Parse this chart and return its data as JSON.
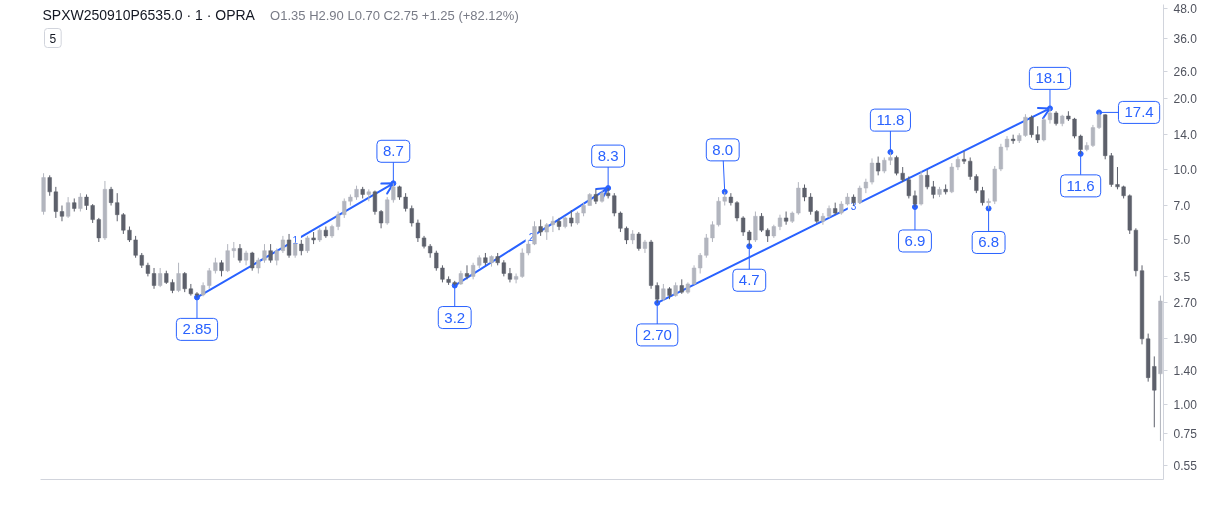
{
  "chart_data": {
    "type": "candlestick",
    "title": "SPXW250910P6535.0 · 1 · OPRA",
    "subtitle": "O1.35 H2.90 L0.70 C2.75 +1.25 (+82.12%)",
    "log": "y",
    "ylim": [
      0.48,
      50
    ],
    "yticks": [
      0.55,
      0.75,
      {
        "value": 1,
        "label": "1.00"
      },
      {
        "value": 1.4,
        "label": "1.40"
      },
      {
        "value": 1.9,
        "label": "1.90"
      },
      {
        "value": 2.7,
        "label": "2.70"
      },
      3.5,
      {
        "value": 5,
        "label": "5.0"
      },
      {
        "value": 7,
        "label": "7.0"
      },
      {
        "value": 10,
        "label": "10.0"
      },
      {
        "value": 14,
        "label": "14.0"
      },
      {
        "value": 20,
        "label": "20.0"
      },
      {
        "value": 26,
        "label": "26.0"
      },
      {
        "value": 36,
        "label": "36.0"
      },
      {
        "value": 48,
        "label": "48.0"
      }
    ],
    "categories": [
      null,
      null,
      null,
      null,
      null,
      null,
      null,
      null,
      null,
      null,
      null,
      null,
      null,
      null,
      null,
      null,
      null,
      null,
      null,
      null,
      null,
      null,
      null,
      null,
      null,
      null,
      null,
      null,
      null,
      null,
      null,
      null,
      null,
      null,
      null,
      null,
      null,
      null,
      null,
      null,
      null,
      null,
      null,
      null,
      null,
      null,
      null,
      null,
      null,
      null,
      null,
      null,
      null,
      null,
      null,
      null,
      null,
      null,
      null,
      null,
      null,
      null,
      null,
      null,
      null,
      null,
      null,
      null,
      null,
      null,
      null,
      null,
      null,
      null,
      null,
      null,
      null,
      null,
      null,
      null,
      null,
      null,
      null,
      null,
      null,
      null,
      null,
      null,
      null,
      null,
      null,
      null,
      null,
      null,
      null,
      null,
      null,
      null,
      null,
      null,
      null,
      null,
      null,
      null,
      null,
      null,
      null,
      null,
      null,
      null,
      null,
      null,
      null,
      null,
      null,
      null,
      null,
      null,
      null,
      null,
      null,
      null,
      null,
      null,
      null,
      null,
      null,
      null,
      null,
      null,
      null,
      null,
      null,
      null,
      null,
      null,
      null,
      null,
      null,
      null,
      null,
      null,
      null,
      null,
      null,
      null,
      null,
      null,
      null,
      null,
      null,
      null,
      null,
      null,
      null,
      null,
      null,
      null,
      null,
      null,
      null,
      null,
      null,
      null,
      null,
      null,
      null,
      null,
      null,
      null,
      null,
      null,
      null,
      null,
      null,
      null,
      null,
      null,
      null,
      null,
      null,
      null,
      null
    ],
    "ohlc": [
      [
        6.6,
        9.6,
        6.4,
        9.2
      ],
      [
        9.2,
        9.4,
        7.7,
        8.0
      ],
      [
        8.0,
        8.4,
        6.2,
        6.6
      ],
      [
        6.6,
        7.0,
        6.0,
        6.3
      ],
      [
        6.3,
        7.6,
        6.2,
        7.2
      ],
      [
        7.2,
        7.5,
        6.6,
        6.8
      ],
      [
        6.8,
        7.9,
        6.6,
        7.6
      ],
      [
        7.6,
        7.8,
        6.7,
        7.0
      ],
      [
        7.0,
        7.1,
        5.9,
        6.1
      ],
      [
        6.1,
        6.2,
        4.9,
        5.1
      ],
      [
        5.1,
        8.9,
        5.0,
        8.2
      ],
      [
        8.2,
        8.4,
        7.0,
        7.2
      ],
      [
        7.2,
        7.9,
        6.0,
        6.4
      ],
      [
        6.4,
        6.5,
        5.3,
        5.5
      ],
      [
        5.5,
        5.7,
        4.9,
        5.0
      ],
      [
        5.0,
        5.2,
        4.2,
        4.3
      ],
      [
        4.3,
        4.4,
        3.8,
        3.9
      ],
      [
        3.9,
        4.0,
        3.5,
        3.6
      ],
      [
        3.6,
        3.8,
        3.1,
        3.2
      ],
      [
        3.2,
        3.8,
        3.15,
        3.6
      ],
      [
        3.6,
        3.7,
        3.25,
        3.3
      ],
      [
        3.3,
        3.4,
        2.97,
        3.05
      ],
      [
        3.05,
        4.0,
        3.0,
        3.6
      ],
      [
        3.6,
        3.65,
        3.0,
        3.1
      ],
      [
        3.1,
        3.25,
        2.9,
        2.95
      ],
      [
        2.95,
        3.0,
        2.85,
        2.92
      ],
      [
        2.92,
        3.3,
        2.88,
        3.2
      ],
      [
        3.2,
        3.8,
        3.1,
        3.7
      ],
      [
        3.7,
        4.2,
        3.6,
        4.0
      ],
      [
        4.0,
        4.1,
        3.5,
        3.7
      ],
      [
        3.7,
        4.8,
        3.65,
        4.5
      ],
      [
        4.5,
        4.9,
        4.2,
        4.6
      ],
      [
        4.6,
        4.8,
        4.0,
        4.1
      ],
      [
        4.1,
        4.5,
        3.9,
        4.4
      ],
      [
        4.4,
        4.45,
        3.7,
        3.8
      ],
      [
        3.8,
        4.2,
        3.6,
        4.1
      ],
      [
        4.1,
        4.8,
        4.0,
        4.5
      ],
      [
        4.5,
        4.8,
        4.0,
        4.1
      ],
      [
        4.1,
        4.6,
        3.9,
        4.5
      ],
      [
        4.5,
        5.2,
        4.4,
        5.0
      ],
      [
        5.0,
        5.3,
        4.2,
        4.3
      ],
      [
        4.3,
        4.9,
        4.2,
        4.8
      ],
      [
        4.8,
        5.0,
        4.3,
        4.5
      ],
      [
        4.5,
        5.2,
        4.4,
        5.1
      ],
      [
        5.1,
        5.4,
        4.8,
        5.0
      ],
      [
        5.0,
        5.6,
        4.9,
        5.5
      ],
      [
        5.5,
        5.7,
        5.1,
        5.2
      ],
      [
        5.2,
        5.8,
        5.1,
        5.7
      ],
      [
        5.7,
        6.6,
        5.5,
        6.4
      ],
      [
        6.4,
        7.5,
        6.2,
        7.3
      ],
      [
        7.3,
        7.8,
        7.0,
        7.6
      ],
      [
        7.6,
        8.5,
        7.4,
        8.2
      ],
      [
        8.2,
        8.4,
        7.5,
        7.8
      ],
      [
        7.8,
        8.2,
        7.3,
        8.0
      ],
      [
        8.0,
        8.1,
        6.4,
        6.6
      ],
      [
        6.6,
        6.7,
        5.6,
        5.9
      ],
      [
        5.9,
        7.6,
        5.8,
        7.4
      ],
      [
        7.4,
        8.7,
        7.2,
        8.4
      ],
      [
        8.4,
        8.5,
        7.4,
        7.6
      ],
      [
        7.6,
        7.9,
        6.6,
        6.8
      ],
      [
        6.8,
        7.0,
        5.7,
        5.9
      ],
      [
        5.9,
        6.1,
        4.9,
        5.1
      ],
      [
        5.1,
        5.2,
        4.6,
        4.7
      ],
      [
        4.7,
        4.8,
        4.2,
        4.4
      ],
      [
        4.4,
        4.5,
        3.7,
        3.8
      ],
      [
        3.8,
        3.9,
        3.3,
        3.4
      ],
      [
        3.4,
        3.5,
        3.22,
        3.3
      ],
      [
        3.3,
        3.35,
        3.2,
        3.25
      ],
      [
        3.25,
        3.7,
        3.22,
        3.6
      ],
      [
        3.6,
        3.9,
        3.4,
        3.5
      ],
      [
        3.5,
        4.0,
        3.4,
        3.9
      ],
      [
        3.9,
        4.3,
        3.8,
        4.2
      ],
      [
        4.2,
        4.4,
        3.9,
        4.0
      ],
      [
        4.0,
        4.3,
        3.85,
        4.25
      ],
      [
        4.25,
        4.4,
        3.9,
        4.0
      ],
      [
        4.0,
        4.1,
        3.5,
        3.6
      ],
      [
        3.6,
        3.8,
        3.3,
        3.4
      ],
      [
        3.4,
        3.6,
        3.27,
        3.5
      ],
      [
        3.5,
        4.6,
        3.45,
        4.4
      ],
      [
        4.4,
        5.0,
        4.3,
        4.8
      ],
      [
        4.8,
        6.0,
        4.75,
        5.7
      ],
      [
        5.7,
        6.1,
        5.2,
        5.4
      ],
      [
        5.4,
        5.9,
        5.0,
        5.8
      ],
      [
        5.8,
        6.3,
        5.4,
        6.0
      ],
      [
        6.0,
        6.2,
        5.5,
        5.7
      ],
      [
        5.7,
        6.3,
        5.6,
        6.2
      ],
      [
        6.2,
        6.7,
        5.7,
        5.9
      ],
      [
        5.9,
        6.6,
        5.8,
        6.5
      ],
      [
        6.5,
        7.2,
        6.3,
        7.0
      ],
      [
        7.0,
        7.9,
        7.0,
        7.8
      ],
      [
        7.8,
        8.2,
        7.1,
        7.3
      ],
      [
        7.3,
        8.1,
        7.2,
        7.9
      ],
      [
        7.9,
        8.3,
        7.5,
        7.7
      ],
      [
        7.7,
        7.9,
        6.3,
        6.5
      ],
      [
        6.5,
        6.6,
        5.4,
        5.6
      ],
      [
        5.6,
        5.7,
        4.8,
        5.0
      ],
      [
        5.0,
        5.5,
        4.8,
        5.3
      ],
      [
        5.3,
        5.4,
        4.5,
        4.6
      ],
      [
        4.6,
        5.0,
        4.4,
        4.9
      ],
      [
        4.9,
        5.0,
        3.1,
        3.2
      ],
      [
        3.2,
        3.3,
        2.7,
        2.8
      ],
      [
        2.8,
        3.25,
        2.75,
        3.1
      ],
      [
        3.1,
        3.15,
        2.8,
        2.9
      ],
      [
        2.9,
        3.3,
        2.87,
        3.2
      ],
      [
        3.2,
        3.4,
        2.95,
        3.0
      ],
      [
        3.0,
        3.3,
        2.95,
        3.25
      ],
      [
        3.25,
        3.9,
        3.22,
        3.8
      ],
      [
        3.8,
        4.4,
        3.6,
        4.3
      ],
      [
        4.3,
        5.3,
        4.2,
        5.1
      ],
      [
        5.1,
        6.0,
        4.9,
        5.8
      ],
      [
        5.8,
        7.6,
        5.7,
        7.3
      ],
      [
        7.3,
        8.0,
        7.0,
        7.6
      ],
      [
        7.6,
        7.9,
        7.0,
        7.2
      ],
      [
        7.2,
        7.3,
        6.0,
        6.2
      ],
      [
        6.2,
        6.3,
        5.2,
        5.4
      ],
      [
        5.4,
        5.5,
        4.7,
        5.0
      ],
      [
        5.0,
        6.6,
        4.9,
        6.3
      ],
      [
        6.3,
        6.5,
        5.4,
        5.5
      ],
      [
        5.5,
        5.6,
        4.9,
        5.2
      ],
      [
        5.2,
        5.8,
        5.1,
        5.7
      ],
      [
        5.7,
        6.4,
        5.5,
        6.2
      ],
      [
        6.2,
        6.6,
        5.8,
        6.0
      ],
      [
        6.0,
        6.6,
        5.9,
        6.5
      ],
      [
        6.5,
        8.8,
        6.4,
        8.3
      ],
      [
        8.3,
        8.6,
        7.3,
        7.6
      ],
      [
        7.6,
        7.9,
        6.4,
        6.6
      ],
      [
        6.6,
        6.7,
        5.9,
        6.0
      ],
      [
        6.0,
        6.5,
        5.8,
        6.3
      ],
      [
        6.3,
        7.0,
        6.2,
        6.8
      ],
      [
        6.8,
        7.2,
        6.4,
        6.5
      ],
      [
        6.5,
        7.3,
        6.4,
        7.1
      ],
      [
        7.1,
        7.9,
        7.0,
        7.6
      ],
      [
        7.6,
        7.8,
        7.0,
        7.2
      ],
      [
        7.2,
        8.5,
        7.1,
        8.3
      ],
      [
        8.3,
        9.1,
        7.9,
        8.8
      ],
      [
        8.8,
        11.1,
        8.6,
        10.6
      ],
      [
        10.6,
        11.3,
        9.4,
        9.8
      ],
      [
        9.8,
        11.2,
        9.6,
        10.9
      ],
      [
        10.9,
        11.8,
        10.4,
        11.2
      ],
      [
        11.2,
        11.4,
        9.4,
        9.6
      ],
      [
        9.6,
        10.2,
        8.8,
        9.0
      ],
      [
        9.0,
        9.3,
        7.5,
        7.7
      ],
      [
        7.7,
        8.1,
        6.9,
        7.1
      ],
      [
        7.1,
        9.8,
        7.0,
        9.4
      ],
      [
        9.4,
        9.9,
        8.2,
        8.4
      ],
      [
        8.4,
        8.9,
        7.5,
        7.8
      ],
      [
        7.8,
        8.4,
        7.6,
        8.2
      ],
      [
        8.2,
        8.6,
        7.8,
        8.0
      ],
      [
        8.0,
        10.6,
        7.9,
        10.2
      ],
      [
        10.2,
        11.3,
        9.9,
        11.0
      ],
      [
        11.0,
        11.9,
        10.5,
        10.8
      ],
      [
        10.8,
        11.2,
        9.0,
        9.3
      ],
      [
        9.3,
        9.5,
        7.9,
        8.1
      ],
      [
        8.1,
        8.4,
        7.0,
        7.2
      ],
      [
        7.2,
        7.5,
        6.8,
        7.3
      ],
      [
        7.3,
        10.3,
        7.1,
        10.0
      ],
      [
        10.0,
        12.8,
        9.8,
        12.4
      ],
      [
        12.4,
        13.8,
        12.0,
        13.4
      ],
      [
        13.4,
        14.0,
        12.8,
        13.2
      ],
      [
        13.2,
        14.2,
        12.9,
        13.9
      ],
      [
        13.9,
        17.1,
        13.7,
        16.6
      ],
      [
        16.6,
        16.9,
        13.6,
        14.0
      ],
      [
        14.0,
        15.2,
        12.9,
        13.3
      ],
      [
        13.3,
        16.5,
        13.1,
        16.2
      ],
      [
        16.2,
        18.1,
        15.6,
        17.3
      ],
      [
        17.3,
        17.6,
        15.3,
        15.6
      ],
      [
        15.6,
        17.0,
        15.2,
        16.8
      ],
      [
        16.8,
        17.6,
        16.0,
        16.3
      ],
      [
        16.3,
        16.5,
        13.5,
        13.8
      ],
      [
        13.8,
        14.0,
        11.6,
        12.1
      ],
      [
        12.1,
        13.0,
        11.9,
        12.6
      ],
      [
        12.6,
        15.4,
        12.4,
        15.0
      ],
      [
        15.0,
        17.4,
        14.8,
        17.0
      ],
      [
        17.0,
        17.1,
        11.0,
        11.4
      ],
      [
        11.4,
        11.7,
        8.4,
        8.6
      ],
      [
        8.6,
        10.2,
        8.2,
        8.4
      ],
      [
        8.4,
        8.5,
        7.5,
        7.7
      ],
      [
        7.7,
        7.8,
        5.3,
        5.5
      ],
      [
        5.5,
        5.6,
        3.5,
        3.7
      ],
      [
        3.7,
        3.9,
        1.8,
        1.9
      ],
      [
        1.9,
        2.0,
        1.25,
        1.3
      ],
      [
        1.45,
        1.6,
        0.8,
        1.15
      ],
      [
        1.35,
        2.9,
        0.7,
        2.75
      ]
    ],
    "colors": [
      "#b2b5be",
      "#5d606b",
      "#5d606b",
      "#5d606b",
      "#b2b5be",
      "#5d606b",
      "#b2b5be",
      "#5d606b",
      "#5d606b",
      "#5d606b",
      "#b2b5be",
      "#5d606b",
      "#5d606b",
      "#5d606b",
      "#5d606b",
      "#5d606b",
      "#5d606b",
      "#5d606b",
      "#5d606b",
      "#b2b5be",
      "#5d606b",
      "#5d606b",
      "#b2b5be",
      "#5d606b",
      "#5d606b",
      "#5d606b",
      "#b2b5be",
      "#b2b5be",
      "#b2b5be",
      "#5d606b",
      "#b2b5be",
      "#b2b5be",
      "#5d606b",
      "#b2b5be",
      "#5d606b",
      "#b2b5be",
      "#b2b5be",
      "#5d606b",
      "#b2b5be",
      "#b2b5be",
      "#5d606b",
      "#b2b5be",
      "#5d606b",
      "#b2b5be",
      "#5d606b",
      "#b2b5be",
      "#5d606b",
      "#b2b5be",
      "#b2b5be",
      "#b2b5be",
      "#b2b5be",
      "#b2b5be",
      "#5d606b",
      "#b2b5be",
      "#5d606b",
      "#5d606b",
      "#b2b5be",
      "#b2b5be",
      "#5d606b",
      "#5d606b",
      "#5d606b",
      "#5d606b",
      "#5d606b",
      "#5d606b",
      "#5d606b",
      "#5d606b",
      "#5d606b",
      "#5d606b",
      "#b2b5be",
      "#5d606b",
      "#b2b5be",
      "#b2b5be",
      "#5d606b",
      "#b2b5be",
      "#5d606b",
      "#5d606b",
      "#5d606b",
      "#b2b5be",
      "#b2b5be",
      "#b2b5be",
      "#b2b5be",
      "#5d606b",
      "#b2b5be",
      "#b2b5be",
      "#5d606b",
      "#b2b5be",
      "#5d606b",
      "#b2b5be",
      "#b2b5be",
      "#b2b5be",
      "#5d606b",
      "#b2b5be",
      "#5d606b",
      "#5d606b",
      "#5d606b",
      "#5d606b",
      "#b2b5be",
      "#5d606b",
      "#b2b5be",
      "#5d606b",
      "#5d606b",
      "#b2b5be",
      "#5d606b",
      "#b2b5be",
      "#5d606b",
      "#b2b5be",
      "#b2b5be",
      "#b2b5be",
      "#b2b5be",
      "#b2b5be",
      "#b2b5be",
      "#b2b5be",
      "#5d606b",
      "#5d606b",
      "#5d606b",
      "#5d606b",
      "#b2b5be",
      "#5d606b",
      "#5d606b",
      "#b2b5be",
      "#b2b5be",
      "#5d606b",
      "#b2b5be",
      "#b2b5be",
      "#5d606b",
      "#5d606b",
      "#5d606b",
      "#b2b5be",
      "#b2b5be",
      "#5d606b",
      "#b2b5be",
      "#b2b5be",
      "#5d606b",
      "#b2b5be",
      "#b2b5be",
      "#b2b5be",
      "#5d606b",
      "#b2b5be",
      "#b2b5be",
      "#5d606b",
      "#5d606b",
      "#5d606b",
      "#5d606b",
      "#b2b5be",
      "#5d606b",
      "#5d606b",
      "#b2b5be",
      "#5d606b",
      "#b2b5be",
      "#b2b5be",
      "#5d606b",
      "#5d606b",
      "#5d606b",
      "#5d606b",
      "#b2b5be",
      "#b2b5be",
      "#b2b5be",
      "#b2b5be",
      "#5d606b",
      "#b2b5be",
      "#b2b5be",
      "#5d606b",
      "#5d606b",
      "#b2b5be",
      "#b2b5be",
      "#5d606b",
      "#b2b5be",
      "#5d606b",
      "#5d606b",
      "#5d606b",
      "#b2b5be",
      "#b2b5be",
      "#b2b5be",
      "#5d606b",
      "#5d606b",
      "#5d606b",
      "#5d606b",
      "#5d606b",
      "#5d606b",
      "#5d606b",
      "#5d606b",
      "#5d606b",
      "#b2b5be"
    ],
    "annotations": [
      {
        "text": "2.85",
        "y": 2.85
      },
      {
        "text": "8.7",
        "y": 8.7
      },
      {
        "text": "3.2",
        "y": 3.2
      },
      {
        "text": "8.3",
        "y": 8.3
      },
      {
        "text": "2.70",
        "y": 2.7
      },
      {
        "text": "8.0",
        "y": 8.0
      },
      {
        "text": "4.7",
        "y": 4.7
      },
      {
        "text": "11.8",
        "y": 11.8
      },
      {
        "text": "6.9",
        "y": 6.9
      },
      {
        "text": "6.8",
        "y": 6.8
      },
      {
        "text": "18.1",
        "y": 18.1
      },
      {
        "text": "11.6",
        "y": 11.6
      },
      {
        "text": "17.4",
        "y": 17.4
      },
      "1",
      "2",
      "3",
      "5"
    ]
  }
}
